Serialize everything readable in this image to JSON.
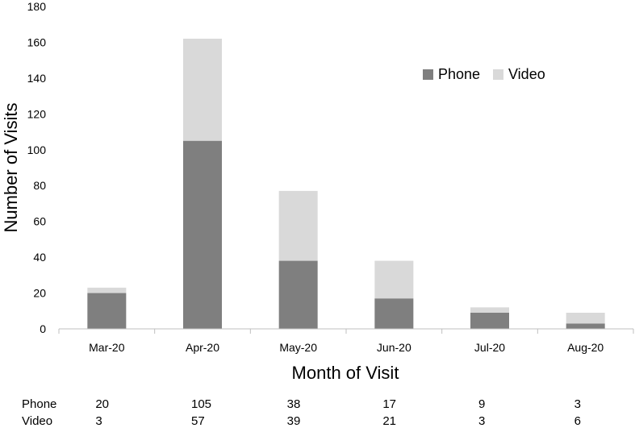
{
  "chart_data": {
    "type": "bar",
    "stacked": true,
    "categories": [
      "Mar-20",
      "Apr-20",
      "May-20",
      "Jun-20",
      "Jul-20",
      "Aug-20"
    ],
    "series": [
      {
        "name": "Phone",
        "values": [
          20,
          105,
          38,
          17,
          9,
          3
        ],
        "color": "#7f7f7f"
      },
      {
        "name": "Video",
        "values": [
          3,
          57,
          39,
          21,
          3,
          6
        ],
        "color": "#d9d9d9"
      }
    ],
    "title": "",
    "xlabel": "Month of Visit",
    "ylabel": "Number of Visits",
    "ylim": [
      0,
      180
    ],
    "yticks": [
      0,
      20,
      40,
      60,
      80,
      100,
      120,
      140,
      160,
      180
    ],
    "grid": false,
    "legend_position": "top-right",
    "data_table": {
      "rows": [
        {
          "label": "Phone",
          "values": [
            "20",
            "105",
            "38",
            "17",
            "9",
            "3"
          ]
        },
        {
          "label": "Video",
          "values": [
            "3",
            "57",
            "39",
            "21",
            "3",
            "6"
          ]
        }
      ]
    }
  }
}
